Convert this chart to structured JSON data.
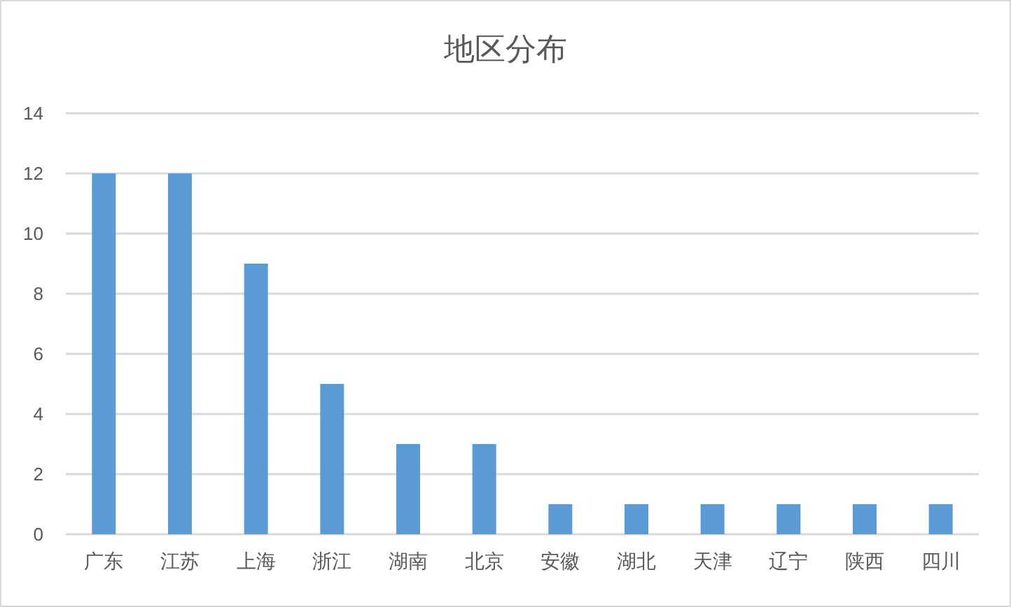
{
  "chart_data": {
    "type": "bar",
    "title": "地区分布",
    "categories": [
      "广东",
      "江苏",
      "上海",
      "浙江",
      "湖南",
      "北京",
      "安徽",
      "湖北",
      "天津",
      "辽宁",
      "陕西",
      "四川"
    ],
    "values": [
      12,
      12,
      9,
      5,
      3,
      3,
      1,
      1,
      1,
      1,
      1,
      1
    ],
    "color": "#5b9bd5",
    "ylim": [
      0,
      14
    ],
    "yticks": [
      0,
      2,
      4,
      6,
      8,
      10,
      12,
      14
    ],
    "grid": "y"
  }
}
